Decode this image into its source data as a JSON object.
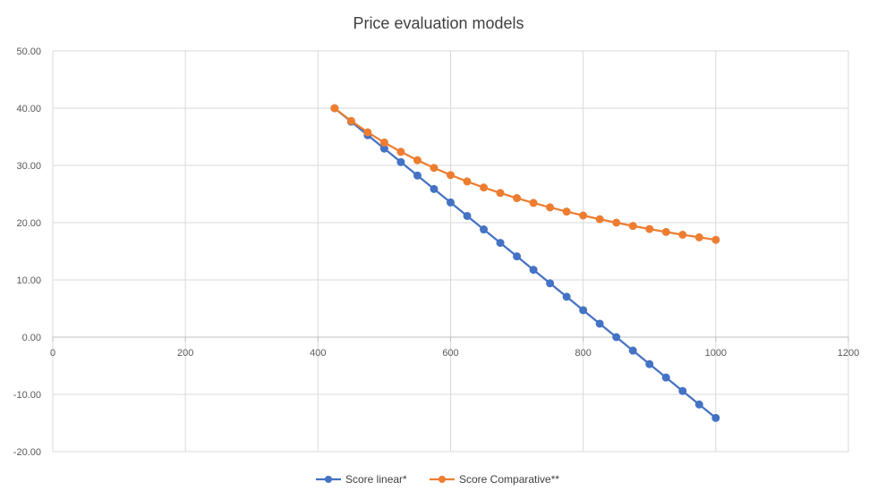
{
  "chart_data": {
    "type": "scatter",
    "title": "Price evaluation models",
    "xlabel": "",
    "ylabel": "",
    "xlim": [
      0,
      1200
    ],
    "ylim": [
      -20,
      50
    ],
    "x_ticks": [
      0,
      200,
      400,
      600,
      800,
      1000,
      1200
    ],
    "x_tick_labels": [
      "0",
      "200",
      "400",
      "600",
      "800",
      "1000",
      "1200"
    ],
    "y_ticks": [
      -20,
      -10,
      0,
      10,
      20,
      30,
      40,
      50
    ],
    "y_tick_labels": [
      "-20.00",
      "-10.00",
      "0.00",
      "10.00",
      "20.00",
      "30.00",
      "40.00",
      "50.00"
    ],
    "grid": true,
    "legend_position": "bottom",
    "x": [
      425,
      450,
      475,
      500,
      525,
      550,
      575,
      600,
      625,
      650,
      675,
      700,
      725,
      750,
      775,
      800,
      825,
      850,
      875,
      900,
      925,
      950,
      975,
      1000
    ],
    "series": [
      {
        "name": "Score linear*",
        "color": "#4472C4",
        "values": [
          40.0,
          37.65,
          35.29,
          32.94,
          30.59,
          28.24,
          25.88,
          23.53,
          21.18,
          18.82,
          16.47,
          14.12,
          11.76,
          9.41,
          7.06,
          4.71,
          2.35,
          0.0,
          -2.35,
          -4.71,
          -7.06,
          -9.41,
          -11.76,
          -14.12
        ]
      },
      {
        "name": "Score Comparative**",
        "color": "#ED7D31",
        "values": [
          40.0,
          37.78,
          35.79,
          34.0,
          32.38,
          30.91,
          29.57,
          28.33,
          27.2,
          26.15,
          25.19,
          24.29,
          23.45,
          22.67,
          21.94,
          21.25,
          20.61,
          20.0,
          19.43,
          18.89,
          18.38,
          17.89,
          17.44,
          17.0
        ]
      }
    ]
  }
}
